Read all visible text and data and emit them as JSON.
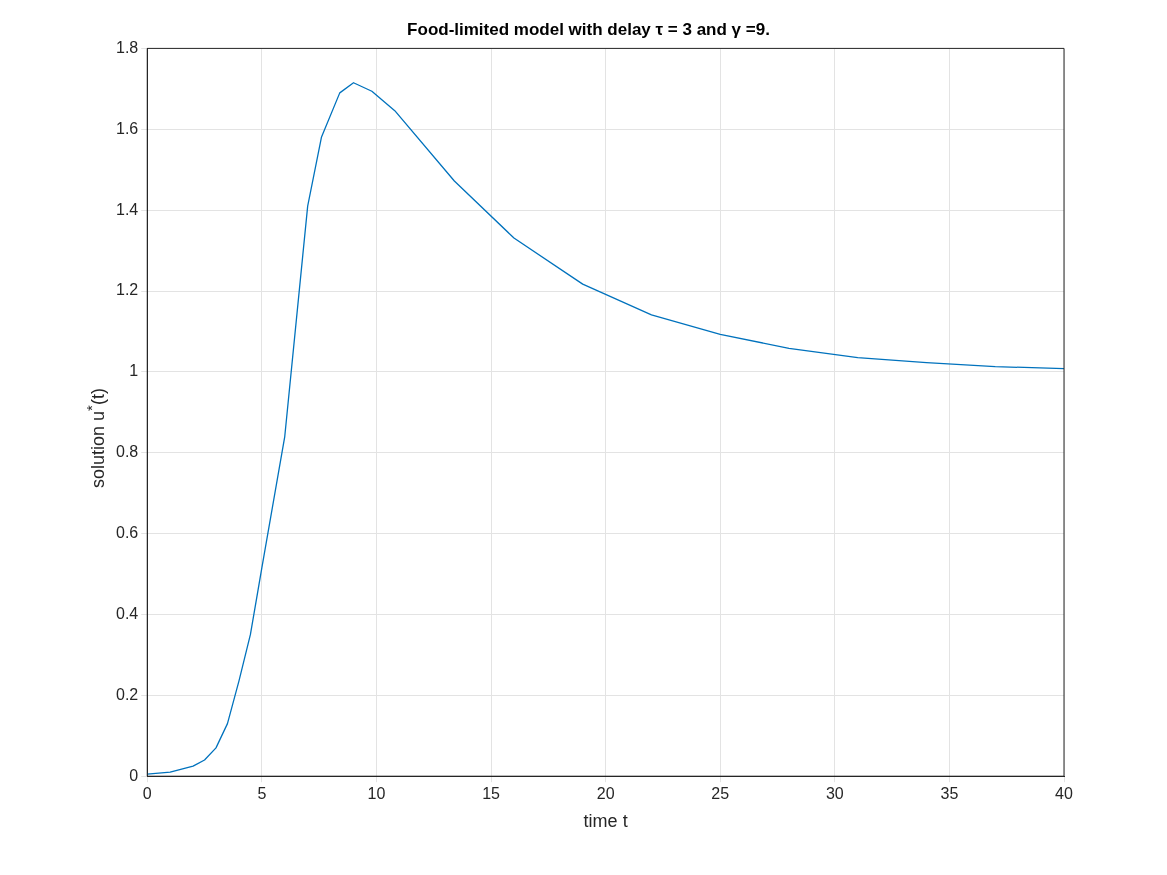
{
  "chart_data": {
    "type": "line",
    "title": "Food-limited model with delay τ = 3 and γ =9.",
    "xlabel": "time t",
    "ylabel": "solution u$^{*}$(t)",
    "x": [
      0,
      1,
      2,
      2.5,
      3,
      3.5,
      4,
      4.5,
      5,
      6,
      7,
      7.6,
      8.4,
      9,
      9.8,
      10.8,
      13.4,
      16,
      19,
      22,
      25,
      28,
      31,
      34,
      37,
      40
    ],
    "series": [
      {
        "color": "#0072bd",
        "values": [
          0.005,
          0.01,
          0.025,
          0.04,
          0.07,
          0.13,
          0.235,
          0.35,
          0.515,
          0.84,
          1.41,
          1.58,
          1.69,
          1.715,
          1.694,
          1.646,
          1.472,
          1.331,
          1.217,
          1.141,
          1.093,
          1.058,
          1.035,
          1.023,
          1.013,
          1.008
        ]
      }
    ],
    "xlim": [
      0,
      40
    ],
    "xticks": [
      0,
      5,
      10,
      15,
      20,
      25,
      30,
      35,
      40
    ],
    "ylim": [
      0,
      1.8
    ],
    "yticks": [
      0,
      0.2,
      0.4,
      0.6,
      0.8,
      1,
      1.2,
      1.4,
      1.6,
      1.8
    ],
    "grid": true,
    "legend": false,
    "marker": "none",
    "line_style": "solid"
  }
}
